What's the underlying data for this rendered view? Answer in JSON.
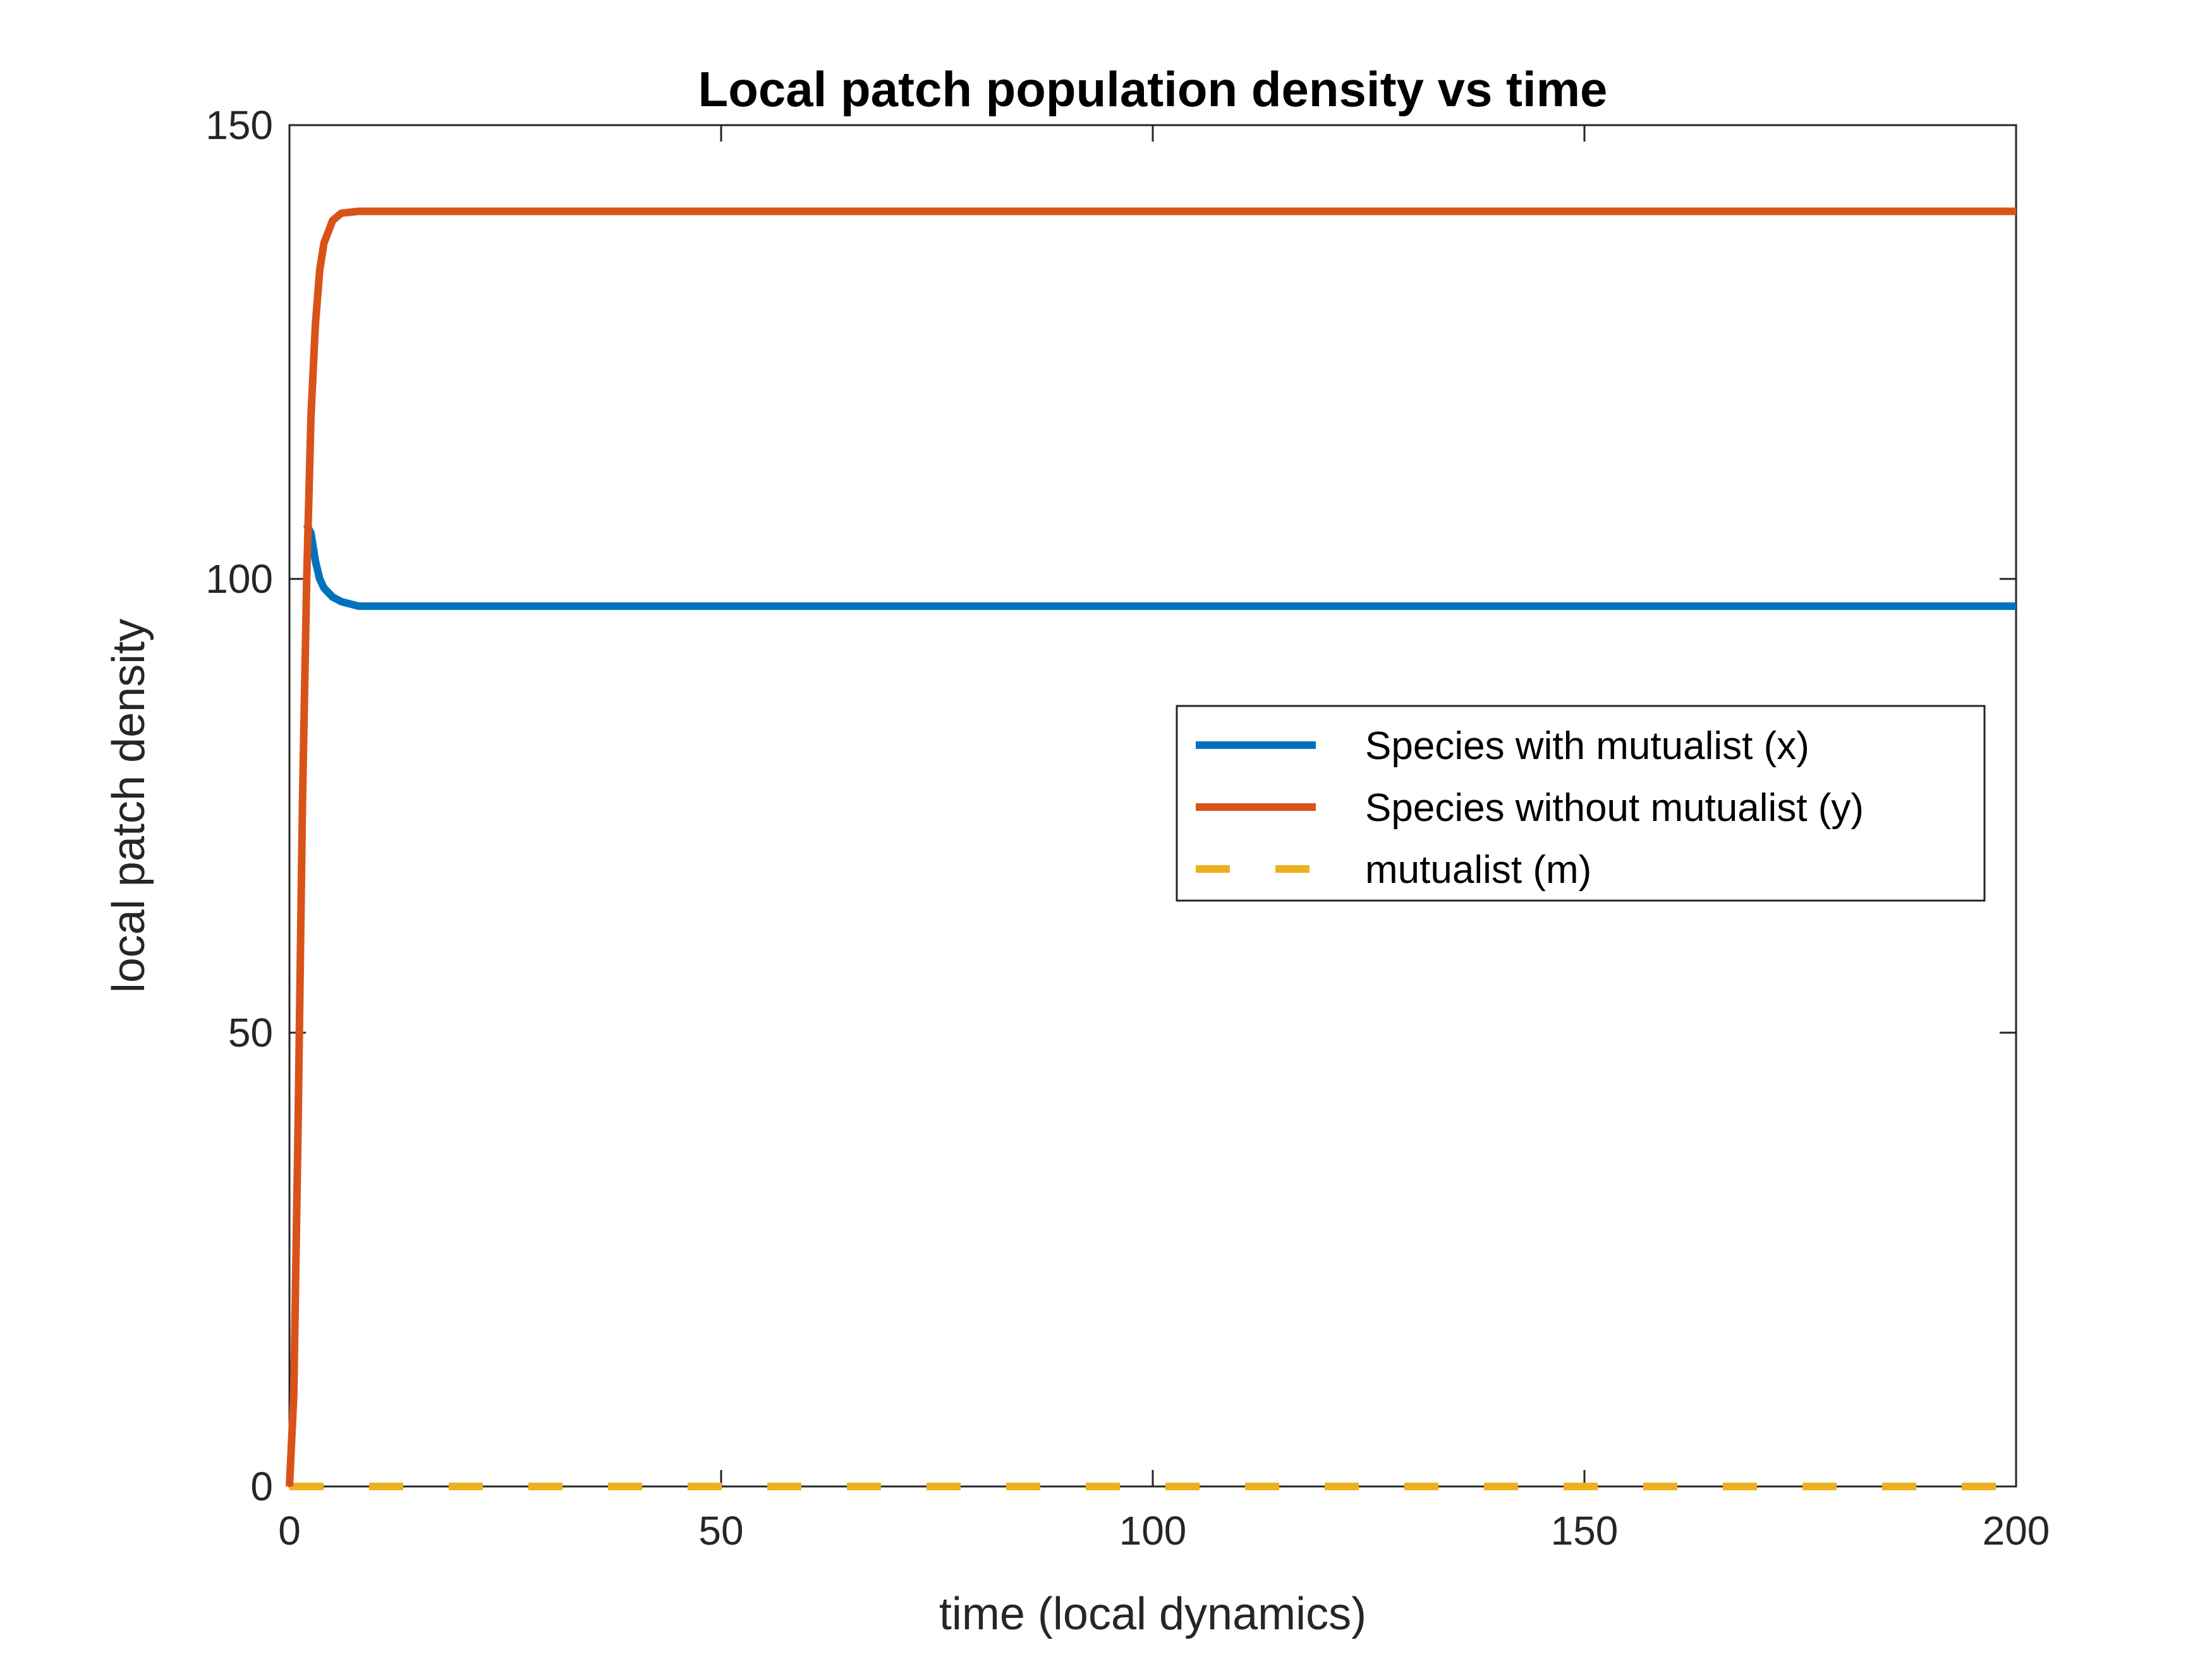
{
  "chart_data": {
    "type": "line",
    "title": "Local patch population density vs time",
    "xlabel": "time (local dynamics)",
    "ylabel": "local patch density",
    "xlim": [
      0,
      200
    ],
    "ylim": [
      0,
      150
    ],
    "xticks": [
      0,
      50,
      100,
      150,
      200
    ],
    "yticks": [
      0,
      50,
      100,
      150
    ],
    "grid": false,
    "legend_position": "right",
    "series": [
      {
        "name": "Species with mutualist (x)",
        "color": "#0072BD",
        "style": "solid",
        "x": [
          2,
          2.5,
          3,
          3.5,
          4,
          5,
          6,
          8,
          10,
          20,
          50,
          100,
          150,
          200
        ],
        "y": [
          106,
          105,
          102,
          100,
          99,
          98,
          97.5,
          97,
          97,
          97,
          97,
          97,
          97,
          97
        ]
      },
      {
        "name": "Species without mutualist (y)",
        "color": "#D95319",
        "style": "solid",
        "x": [
          0,
          0.5,
          1,
          1.5,
          2,
          2.5,
          3,
          3.5,
          4,
          5,
          6,
          8,
          10,
          20,
          50,
          100,
          150,
          200
        ],
        "y": [
          0,
          10,
          40,
          75,
          100,
          118,
          128,
          134,
          137,
          139.5,
          140.3,
          140.5,
          140.5,
          140.5,
          140.5,
          140.5,
          140.5,
          140.5
        ]
      },
      {
        "name": "mutualist (m)",
        "color": "#EDB120",
        "style": "dashed",
        "x": [
          0,
          200
        ],
        "y": [
          0,
          0
        ]
      }
    ]
  }
}
